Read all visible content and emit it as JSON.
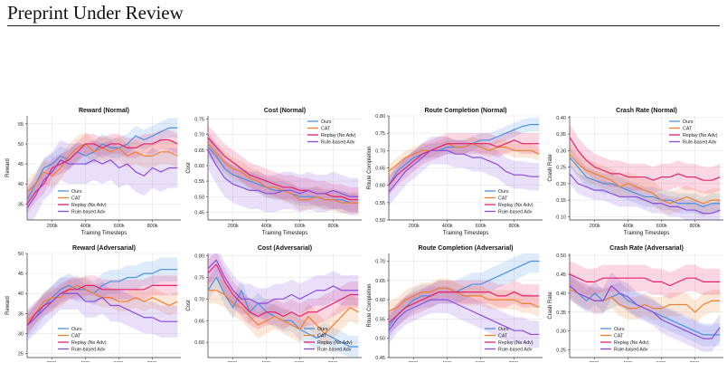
{
  "header": {
    "title": "Preprint Under Review"
  },
  "figure": {
    "xlabel": "Training Timesteps",
    "x_ticks": [
      200000,
      400000,
      600000,
      800000
    ],
    "x_tick_labels": [
      "200k",
      "400k",
      "600k",
      "800k"
    ],
    "xlim": [
      50000,
      970000
    ],
    "legend_labels": [
      "Ours",
      "CAT",
      "Replay (No Adv)",
      "Rule-based Adv"
    ],
    "colors": {
      "Ours": "#4a90e2",
      "CAT": "#f07f2c",
      "Replay (No Adv)": "#e8206a",
      "Rule-based Adv": "#8a4be0"
    }
  },
  "chart_data": [
    {
      "type": "line",
      "title": "Reward (Normal)",
      "ylabel": "Reward",
      "ylim": [
        31,
        57
      ],
      "yticks": [
        35,
        40,
        45,
        50,
        55
      ],
      "legend_position": "bottom-left",
      "x": [
        50000,
        100000,
        150000,
        200000,
        250000,
        300000,
        350000,
        400000,
        450000,
        500000,
        550000,
        600000,
        650000,
        700000,
        750000,
        800000,
        850000,
        900000,
        950000
      ],
      "series": [
        {
          "name": "Ours",
          "values": [
            36,
            40,
            44,
            45,
            47,
            46,
            48,
            47,
            48,
            50,
            49,
            49,
            50,
            52,
            51,
            52,
            53,
            54,
            54
          ],
          "band": 2.5
        },
        {
          "name": "CAT",
          "values": [
            38,
            40,
            43,
            42,
            44,
            47,
            49,
            50,
            48,
            49,
            48,
            49,
            47,
            48,
            47,
            47,
            48,
            48,
            47
          ],
          "band": 3
        },
        {
          "name": "Replay (No Adv)",
          "values": [
            35,
            38,
            40,
            44,
            45,
            46,
            48,
            50,
            50,
            49,
            50,
            50,
            49,
            49,
            50,
            50,
            51,
            51,
            50
          ],
          "band": 2.5
        },
        {
          "name": "Rule-based Adv",
          "values": [
            34,
            37,
            41,
            43,
            46,
            45,
            45,
            45,
            46,
            45,
            46,
            44,
            45,
            43,
            42,
            44,
            43,
            44,
            44
          ],
          "band": 5
        }
      ]
    },
    {
      "type": "line",
      "title": "Cost (Normal)",
      "ylabel": "Cost",
      "ylim": [
        0.425,
        0.76
      ],
      "yticks": [
        0.45,
        0.5,
        0.55,
        0.6,
        0.65,
        0.7,
        0.75
      ],
      "legend_position": "top-right",
      "x": [
        50000,
        100000,
        150000,
        200000,
        250000,
        300000,
        350000,
        400000,
        450000,
        500000,
        550000,
        600000,
        650000,
        700000,
        750000,
        800000,
        850000,
        900000,
        950000
      ],
      "series": [
        {
          "name": "Ours",
          "values": [
            0.66,
            0.63,
            0.59,
            0.57,
            0.56,
            0.55,
            0.54,
            0.53,
            0.52,
            0.52,
            0.51,
            0.5,
            0.5,
            0.5,
            0.49,
            0.49,
            0.49,
            0.48,
            0.48
          ],
          "band": 0.03
        },
        {
          "name": "CAT",
          "values": [
            0.67,
            0.64,
            0.61,
            0.59,
            0.58,
            0.56,
            0.55,
            0.53,
            0.53,
            0.52,
            0.51,
            0.49,
            0.49,
            0.5,
            0.49,
            0.49,
            0.48,
            0.48,
            0.48
          ],
          "band": 0.035
        },
        {
          "name": "Replay (No Adv)",
          "values": [
            0.69,
            0.66,
            0.63,
            0.61,
            0.59,
            0.57,
            0.56,
            0.55,
            0.54,
            0.53,
            0.53,
            0.52,
            0.52,
            0.51,
            0.51,
            0.5,
            0.5,
            0.49,
            0.49
          ],
          "band": 0.04
        },
        {
          "name": "Rule-based Adv",
          "values": [
            0.65,
            0.6,
            0.56,
            0.54,
            0.53,
            0.52,
            0.52,
            0.51,
            0.51,
            0.52,
            0.52,
            0.51,
            0.52,
            0.51,
            0.51,
            0.52,
            0.51,
            0.5,
            0.5
          ],
          "band": 0.06
        }
      ]
    },
    {
      "type": "line",
      "title": "Route Completion (Normal)",
      "ylabel": "Route Completion",
      "ylim": [
        0.5,
        0.8
      ],
      "yticks": [
        0.5,
        0.55,
        0.6,
        0.65,
        0.7,
        0.75,
        0.8
      ],
      "legend_position": "bottom-right",
      "x": [
        50000,
        100000,
        150000,
        200000,
        250000,
        300000,
        350000,
        400000,
        450000,
        500000,
        550000,
        600000,
        650000,
        700000,
        750000,
        800000,
        850000,
        900000,
        950000
      ],
      "series": [
        {
          "name": "Ours",
          "values": [
            0.6,
            0.64,
            0.66,
            0.68,
            0.69,
            0.7,
            0.7,
            0.71,
            0.71,
            0.71,
            0.72,
            0.73,
            0.73,
            0.74,
            0.75,
            0.76,
            0.77,
            0.775,
            0.775
          ],
          "band": 0.02
        },
        {
          "name": "CAT",
          "values": [
            0.64,
            0.66,
            0.68,
            0.69,
            0.7,
            0.7,
            0.71,
            0.72,
            0.71,
            0.71,
            0.72,
            0.71,
            0.7,
            0.71,
            0.71,
            0.7,
            0.7,
            0.7,
            0.69
          ],
          "band": 0.02
        },
        {
          "name": "Replay (No Adv)",
          "values": [
            0.6,
            0.63,
            0.65,
            0.67,
            0.69,
            0.7,
            0.71,
            0.72,
            0.72,
            0.72,
            0.72,
            0.72,
            0.72,
            0.71,
            0.72,
            0.73,
            0.72,
            0.72,
            0.72
          ],
          "band": 0.03
        },
        {
          "name": "Rule-based Adv",
          "values": [
            0.58,
            0.61,
            0.64,
            0.66,
            0.68,
            0.7,
            0.7,
            0.7,
            0.69,
            0.69,
            0.68,
            0.68,
            0.67,
            0.66,
            0.64,
            0.63,
            0.63,
            0.625,
            0.625
          ],
          "band": 0.04
        }
      ]
    },
    {
      "type": "line",
      "title": "Crash Rate (Normal)",
      "ylabel": "Crash Rate",
      "ylim": [
        0.09,
        0.405
      ],
      "yticks": [
        0.1,
        0.15,
        0.2,
        0.25,
        0.3,
        0.35,
        0.4
      ],
      "legend_position": "top-right",
      "x": [
        50000,
        100000,
        150000,
        200000,
        250000,
        300000,
        350000,
        400000,
        450000,
        500000,
        550000,
        600000,
        650000,
        700000,
        750000,
        800000,
        850000,
        900000,
        950000
      ],
      "series": [
        {
          "name": "Ours",
          "values": [
            0.28,
            0.25,
            0.22,
            0.21,
            0.2,
            0.2,
            0.19,
            0.18,
            0.17,
            0.16,
            0.16,
            0.15,
            0.15,
            0.14,
            0.14,
            0.14,
            0.13,
            0.14,
            0.14
          ],
          "band": 0.03
        },
        {
          "name": "CAT",
          "values": [
            0.29,
            0.26,
            0.24,
            0.23,
            0.22,
            0.21,
            0.19,
            0.2,
            0.19,
            0.18,
            0.17,
            0.15,
            0.14,
            0.15,
            0.16,
            0.15,
            0.14,
            0.15,
            0.15
          ],
          "band": 0.035
        },
        {
          "name": "Replay (No Adv)",
          "values": [
            0.34,
            0.3,
            0.27,
            0.25,
            0.24,
            0.23,
            0.23,
            0.22,
            0.22,
            0.22,
            0.21,
            0.22,
            0.22,
            0.23,
            0.22,
            0.22,
            0.21,
            0.21,
            0.22
          ],
          "band": 0.04
        },
        {
          "name": "Rule-based Adv",
          "values": [
            0.23,
            0.2,
            0.19,
            0.18,
            0.18,
            0.17,
            0.16,
            0.16,
            0.16,
            0.15,
            0.14,
            0.14,
            0.13,
            0.13,
            0.12,
            0.12,
            0.11,
            0.11,
            0.12
          ],
          "band": 0.03
        }
      ]
    },
    {
      "type": "line",
      "title": "Reward (Adversarial)",
      "ylabel": "Reward",
      "ylim": [
        24,
        50
      ],
      "yticks": [
        25,
        30,
        35,
        40,
        45,
        50
      ],
      "legend_position": "bottom-left",
      "x": [
        50000,
        100000,
        150000,
        200000,
        250000,
        300000,
        350000,
        400000,
        450000,
        500000,
        550000,
        600000,
        650000,
        700000,
        750000,
        800000,
        850000,
        900000,
        950000
      ],
      "series": [
        {
          "name": "Ours",
          "values": [
            32,
            34,
            37,
            39,
            41,
            42,
            41,
            41,
            40,
            42,
            43,
            43,
            44,
            44,
            45,
            45,
            46,
            46,
            46
          ],
          "band": 3
        },
        {
          "name": "CAT",
          "values": [
            33,
            35,
            38,
            39,
            39,
            41,
            42,
            41,
            40,
            39,
            39,
            38,
            38,
            39,
            38,
            39,
            38,
            37,
            38
          ],
          "band": 2.5
        },
        {
          "name": "Replay (No Adv)",
          "values": [
            32,
            35,
            37,
            38,
            40,
            41,
            41,
            42,
            42,
            41,
            41,
            41,
            41,
            41,
            41,
            42,
            42,
            42,
            42
          ],
          "band": 2.5
        },
        {
          "name": "Rule-based Adv",
          "values": [
            32,
            34,
            36,
            38,
            40,
            40,
            40,
            38,
            38,
            39,
            37,
            37,
            36,
            35,
            34,
            34,
            33,
            33,
            33
          ],
          "band": 4
        }
      ]
    },
    {
      "type": "line",
      "title": "Cost (Adversarial)",
      "ylabel": "Cost",
      "ylim": [
        0.565,
        0.805
      ],
      "yticks": [
        0.6,
        0.65,
        0.7,
        0.75,
        0.8
      ],
      "legend_position": "bottom-right",
      "x": [
        50000,
        100000,
        150000,
        200000,
        250000,
        300000,
        350000,
        400000,
        450000,
        500000,
        550000,
        600000,
        650000,
        700000,
        750000,
        800000,
        850000,
        900000,
        950000
      ],
      "series": [
        {
          "name": "Ours",
          "values": [
            0.72,
            0.75,
            0.71,
            0.68,
            0.72,
            0.67,
            0.69,
            0.67,
            0.66,
            0.65,
            0.65,
            0.63,
            0.62,
            0.61,
            0.62,
            0.61,
            0.6,
            0.59,
            0.59
          ],
          "band": 0.025
        },
        {
          "name": "CAT",
          "values": [
            0.72,
            0.72,
            0.71,
            0.69,
            0.68,
            0.66,
            0.64,
            0.65,
            0.66,
            0.65,
            0.64,
            0.63,
            0.66,
            0.64,
            0.62,
            0.64,
            0.66,
            0.68,
            0.67
          ],
          "band": 0.03
        },
        {
          "name": "Replay (No Adv)",
          "values": [
            0.76,
            0.78,
            0.74,
            0.71,
            0.69,
            0.67,
            0.66,
            0.67,
            0.67,
            0.66,
            0.67,
            0.66,
            0.67,
            0.67,
            0.68,
            0.69,
            0.7,
            0.71,
            0.71
          ],
          "band": 0.03
        },
        {
          "name": "Rule-based Adv",
          "values": [
            0.77,
            0.79,
            0.75,
            0.72,
            0.7,
            0.7,
            0.69,
            0.69,
            0.7,
            0.7,
            0.71,
            0.7,
            0.71,
            0.72,
            0.72,
            0.73,
            0.72,
            0.72,
            0.72
          ],
          "band": 0.035
        }
      ]
    },
    {
      "type": "line",
      "title": "Route Completion (Adversarial)",
      "ylabel": "Route Completion",
      "ylim": [
        0.45,
        0.72
      ],
      "yticks": [
        0.45,
        0.5,
        0.55,
        0.6,
        0.65,
        0.7
      ],
      "legend_position": "bottom-right",
      "x": [
        50000,
        100000,
        150000,
        200000,
        250000,
        300000,
        350000,
        400000,
        450000,
        500000,
        550000,
        600000,
        650000,
        700000,
        750000,
        800000,
        850000,
        900000,
        950000
      ],
      "series": [
        {
          "name": "Ours",
          "values": [
            0.53,
            0.56,
            0.58,
            0.6,
            0.61,
            0.61,
            0.62,
            0.62,
            0.62,
            0.63,
            0.64,
            0.64,
            0.65,
            0.66,
            0.67,
            0.68,
            0.69,
            0.7,
            0.7
          ],
          "band": 0.03
        },
        {
          "name": "CAT",
          "values": [
            0.57,
            0.58,
            0.6,
            0.61,
            0.62,
            0.62,
            0.63,
            0.63,
            0.62,
            0.61,
            0.61,
            0.61,
            0.6,
            0.6,
            0.6,
            0.6,
            0.59,
            0.59,
            0.58
          ],
          "band": 0.025
        },
        {
          "name": "Replay (No Adv)",
          "values": [
            0.54,
            0.56,
            0.58,
            0.59,
            0.6,
            0.61,
            0.62,
            0.62,
            0.62,
            0.62,
            0.62,
            0.62,
            0.62,
            0.61,
            0.61,
            0.62,
            0.61,
            0.61,
            0.61
          ],
          "band": 0.03
        },
        {
          "name": "Rule-based Adv",
          "values": [
            0.52,
            0.55,
            0.57,
            0.58,
            0.59,
            0.6,
            0.6,
            0.6,
            0.59,
            0.58,
            0.57,
            0.56,
            0.55,
            0.54,
            0.53,
            0.52,
            0.52,
            0.51,
            0.51
          ],
          "band": 0.035
        }
      ]
    },
    {
      "type": "line",
      "title": "Crash Rate (Adversarial)",
      "ylabel": "Crash Rate",
      "ylim": [
        0.23,
        0.505
      ],
      "yticks": [
        0.25,
        0.3,
        0.35,
        0.4,
        0.45,
        0.5
      ],
      "legend_position": "bottom-left",
      "x": [
        50000,
        100000,
        150000,
        200000,
        250000,
        300000,
        350000,
        400000,
        450000,
        500000,
        550000,
        600000,
        650000,
        700000,
        750000,
        800000,
        850000,
        900000,
        950000
      ],
      "series": [
        {
          "name": "Ours",
          "values": [
            0.42,
            0.4,
            0.38,
            0.4,
            0.38,
            0.39,
            0.4,
            0.38,
            0.37,
            0.36,
            0.35,
            0.34,
            0.33,
            0.32,
            0.31,
            0.3,
            0.29,
            0.29,
            0.29
          ],
          "band": 0.03
        },
        {
          "name": "CAT",
          "values": [
            0.41,
            0.4,
            0.39,
            0.38,
            0.38,
            0.39,
            0.37,
            0.36,
            0.36,
            0.37,
            0.36,
            0.36,
            0.37,
            0.37,
            0.37,
            0.35,
            0.37,
            0.38,
            0.38
          ],
          "band": 0.03
        },
        {
          "name": "Replay (No Adv)",
          "values": [
            0.45,
            0.44,
            0.43,
            0.43,
            0.44,
            0.44,
            0.44,
            0.44,
            0.44,
            0.44,
            0.43,
            0.43,
            0.42,
            0.43,
            0.44,
            0.44,
            0.43,
            0.43,
            0.43
          ],
          "band": 0.035
        },
        {
          "name": "Rule-based Adv",
          "values": [
            0.42,
            0.4,
            0.39,
            0.38,
            0.38,
            0.42,
            0.4,
            0.39,
            0.37,
            0.36,
            0.35,
            0.33,
            0.32,
            0.31,
            0.3,
            0.29,
            0.28,
            0.28,
            0.31
          ],
          "band": 0.035
        }
      ]
    }
  ]
}
